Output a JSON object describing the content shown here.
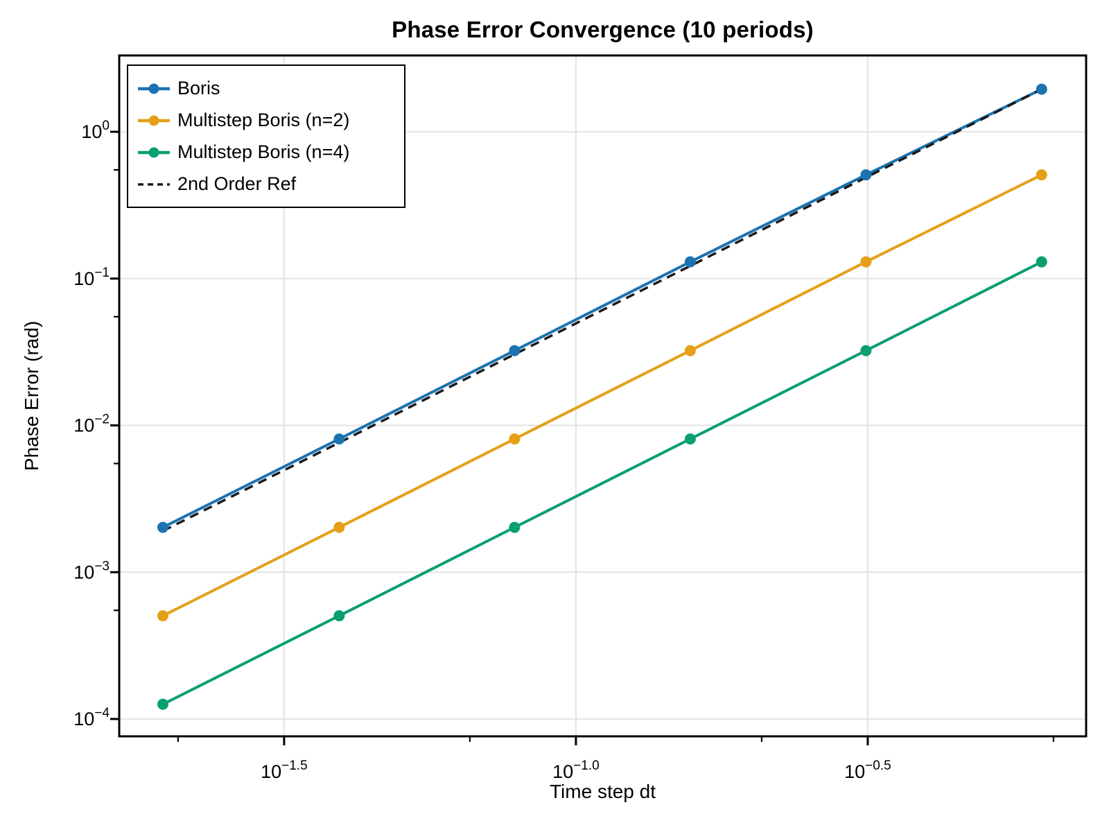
{
  "chart_data": {
    "type": "line",
    "title": "Phase Error Convergence (10 periods)",
    "xlabel": "Time step dt",
    "ylabel": "Phase Error (rad)",
    "x_scale": "log",
    "y_scale": "log",
    "grid": true,
    "legend_position": "top-left",
    "xlim": [
      0.0165,
      0.7485
    ],
    "ylim": [
      7.62e-05,
      3.31
    ],
    "x": [
      0.0196,
      0.0393,
      0.0785,
      0.157,
      0.314,
      0.628
    ],
    "series": [
      {
        "name": "Boris",
        "color": "#1b73b1",
        "style": "solid",
        "marker": "circle",
        "values": [
          0.00202,
          0.00808,
          0.0323,
          0.13,
          0.509,
          1.95
        ]
      },
      {
        "name": "Multistep Boris (n=2)",
        "color": "#e5a016",
        "style": "solid",
        "marker": "circle",
        "values": [
          0.000505,
          0.00202,
          0.00808,
          0.0323,
          0.13,
          0.509
        ]
      },
      {
        "name": "Multistep Boris (n=4)",
        "color": "#0a9e73",
        "style": "solid",
        "marker": "circle",
        "values": [
          0.000126,
          0.000505,
          0.00202,
          0.00808,
          0.0323,
          0.13
        ]
      },
      {
        "name": "2nd Order Ref",
        "color": "#1a1a1a",
        "style": "dashed",
        "marker": "none",
        "values": [
          0.00191,
          0.00763,
          0.0305,
          0.122,
          0.488,
          1.95
        ]
      }
    ],
    "x_ticks": [
      {
        "base": "10",
        "exp": "−1.5",
        "value": 0.0316228
      },
      {
        "base": "10",
        "exp": "−1.0",
        "value": 0.1
      },
      {
        "base": "10",
        "exp": "−0.5",
        "value": 0.316228
      }
    ],
    "x_minor_ticks": [
      0.020811,
      0.0658114,
      0.208101,
      0.6581139
    ],
    "y_ticks": [
      {
        "base": "10",
        "exp": "0",
        "value": 1
      },
      {
        "base": "10",
        "exp": "−1",
        "value": 0.1
      },
      {
        "base": "10",
        "exp": "−2",
        "value": 0.01
      },
      {
        "base": "10",
        "exp": "−3",
        "value": 0.001
      },
      {
        "base": "10",
        "exp": "−4",
        "value": 0.0001
      }
    ],
    "y_minor_ticks": [
      0.55,
      0.055,
      0.0055,
      0.00055
    ],
    "colors": {
      "frame": "#000000",
      "grid": "#e3e3e3",
      "background": "#ffffff",
      "text": "#000000"
    }
  }
}
